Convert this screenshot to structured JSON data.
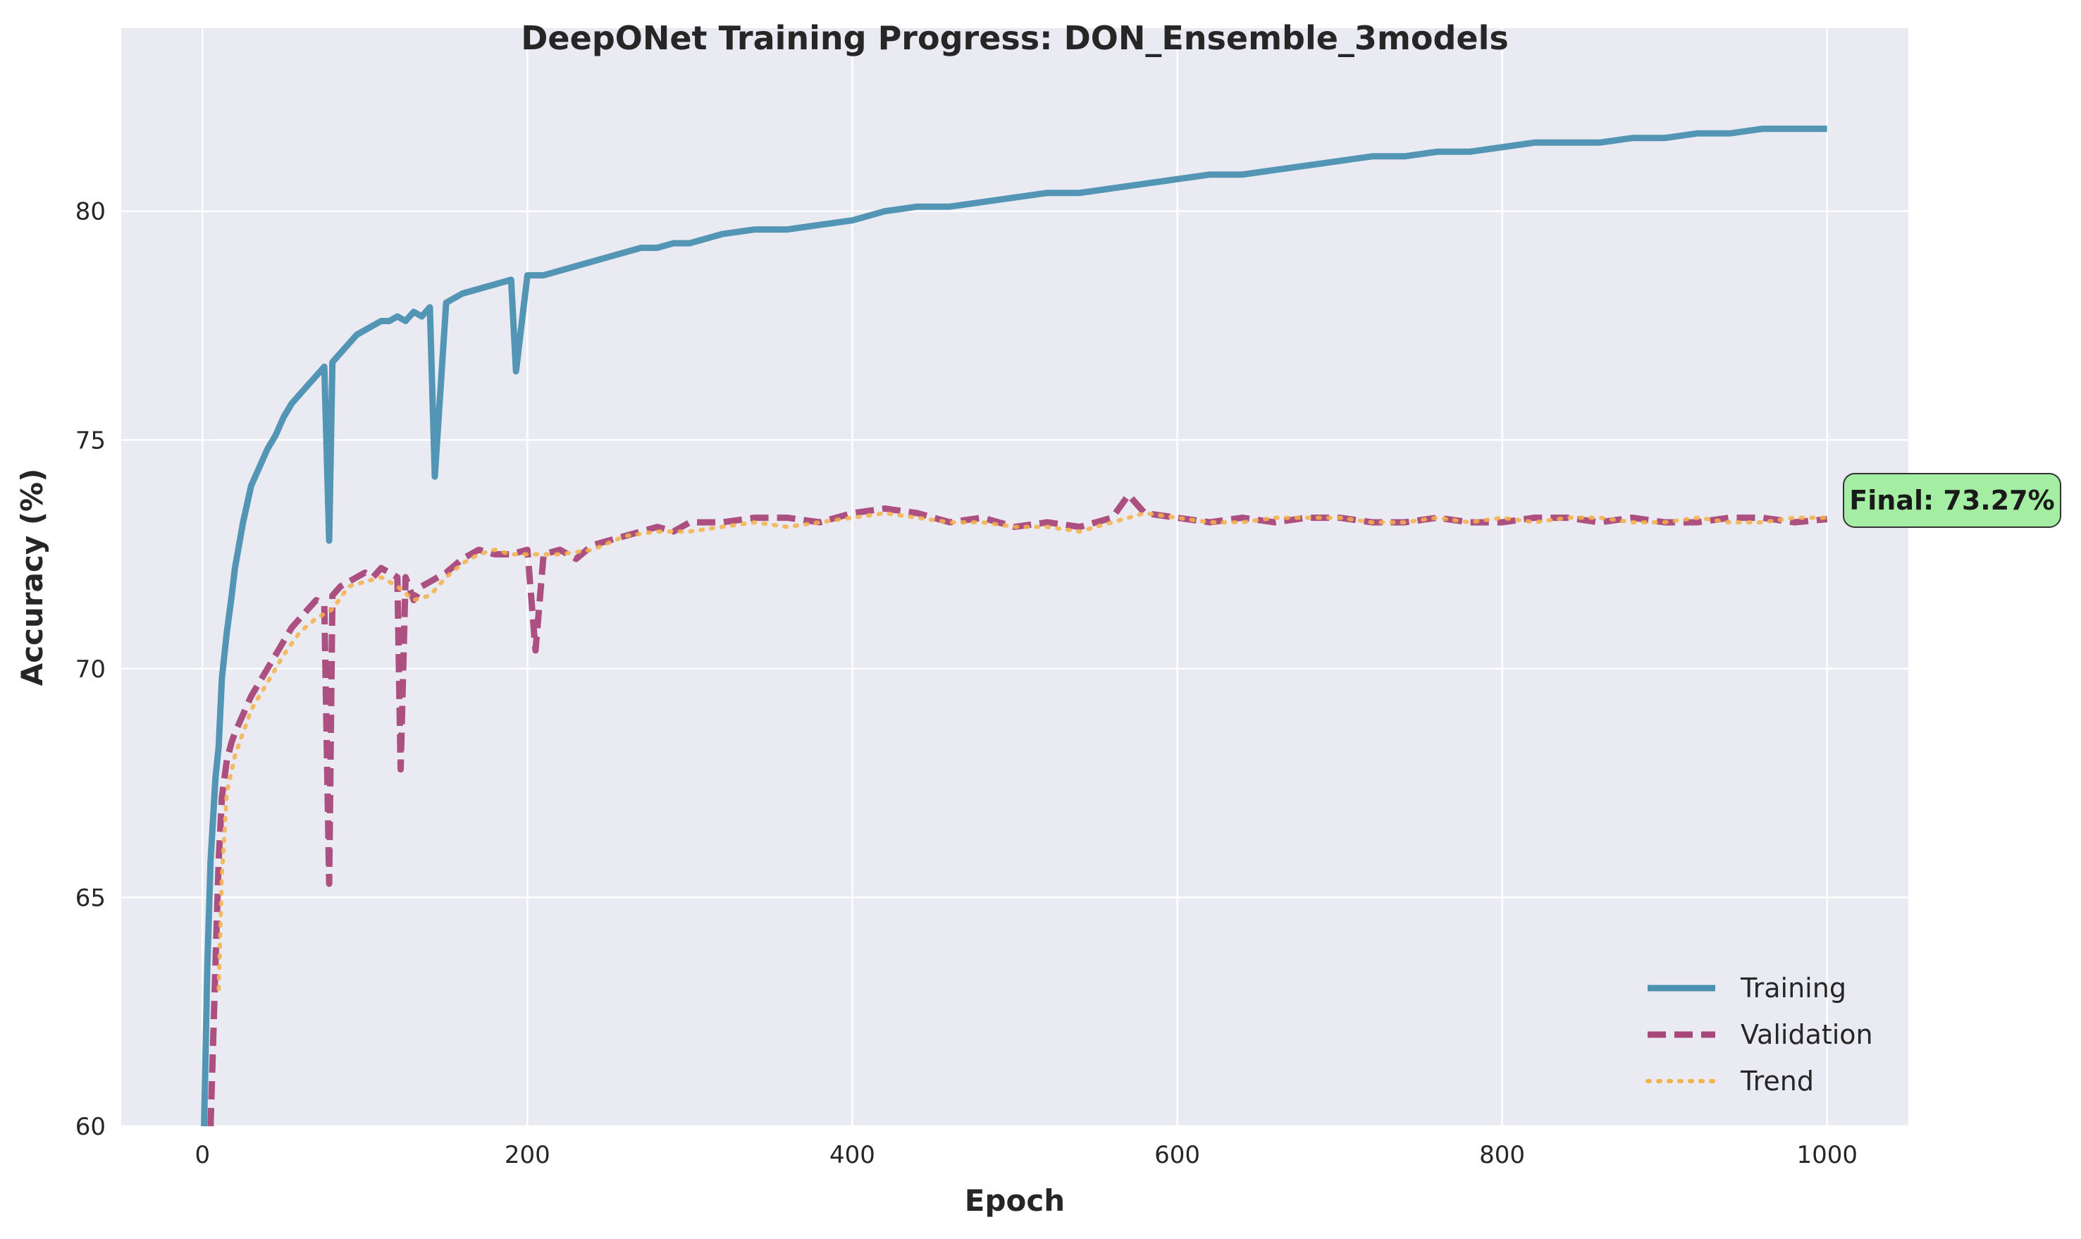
{
  "chart_data": {
    "type": "line",
    "title": "DeepONet Training Progress: DON_Ensemble_3models",
    "xlabel": "Epoch",
    "ylabel": "Accuracy (%)",
    "xlim": [
      -50,
      1050
    ],
    "ylim": [
      60,
      84
    ],
    "xticks": [
      0,
      200,
      400,
      600,
      800,
      1000
    ],
    "yticks": [
      60,
      65,
      70,
      75,
      80
    ],
    "grid": true,
    "legend_position": "bottom-right",
    "series": [
      {
        "name": "Training",
        "color": "#4a90b0",
        "style": "solid",
        "x": [
          1,
          3,
          5,
          8,
          10,
          12,
          15,
          18,
          20,
          25,
          30,
          35,
          40,
          45,
          50,
          55,
          60,
          65,
          70,
          75,
          78,
          80,
          85,
          90,
          95,
          100,
          105,
          110,
          115,
          120,
          125,
          130,
          135,
          140,
          143,
          150,
          160,
          170,
          180,
          190,
          193,
          200,
          210,
          220,
          230,
          240,
          250,
          260,
          270,
          280,
          290,
          300,
          320,
          340,
          360,
          380,
          400,
          420,
          440,
          460,
          480,
          500,
          520,
          540,
          560,
          580,
          600,
          620,
          640,
          660,
          680,
          700,
          720,
          740,
          760,
          780,
          800,
          820,
          840,
          860,
          880,
          900,
          920,
          940,
          960,
          980,
          1000
        ],
        "values": [
          60.0,
          63.5,
          65.8,
          67.6,
          68.3,
          69.8,
          70.8,
          71.6,
          72.2,
          73.2,
          74.0,
          74.4,
          74.8,
          75.1,
          75.5,
          75.8,
          76.0,
          76.2,
          76.4,
          76.6,
          72.8,
          76.7,
          76.9,
          77.1,
          77.3,
          77.4,
          77.5,
          77.6,
          77.6,
          77.7,
          77.6,
          77.8,
          77.7,
          77.9,
          74.2,
          78.0,
          78.2,
          78.3,
          78.4,
          78.5,
          76.5,
          78.6,
          78.6,
          78.7,
          78.8,
          78.9,
          79.0,
          79.1,
          79.2,
          79.2,
          79.3,
          79.3,
          79.5,
          79.6,
          79.6,
          79.7,
          79.8,
          80.0,
          80.1,
          80.1,
          80.2,
          80.3,
          80.4,
          80.4,
          80.5,
          80.6,
          80.7,
          80.8,
          80.8,
          80.9,
          81.0,
          81.1,
          81.2,
          81.2,
          81.3,
          81.3,
          81.4,
          81.5,
          81.5,
          81.5,
          81.6,
          81.6,
          81.7,
          81.7,
          81.8,
          81.8,
          81.8
        ]
      },
      {
        "name": "Validation",
        "color": "#a8487a",
        "style": "dashed",
        "x": [
          5,
          8,
          10,
          12,
          15,
          18,
          20,
          25,
          30,
          35,
          40,
          45,
          50,
          55,
          60,
          65,
          70,
          75,
          78,
          80,
          85,
          90,
          95,
          100,
          105,
          110,
          115,
          120,
          122,
          125,
          130,
          135,
          140,
          150,
          160,
          170,
          180,
          190,
          200,
          205,
          210,
          220,
          230,
          240,
          250,
          260,
          270,
          280,
          290,
          300,
          320,
          340,
          360,
          380,
          400,
          420,
          440,
          460,
          480,
          500,
          520,
          540,
          560,
          570,
          580,
          600,
          620,
          640,
          660,
          680,
          700,
          720,
          740,
          760,
          780,
          800,
          820,
          840,
          860,
          880,
          900,
          920,
          940,
          960,
          980,
          1000
        ],
        "values": [
          60.0,
          63.5,
          65.8,
          67.2,
          68.0,
          68.4,
          68.6,
          69.0,
          69.4,
          69.7,
          70.0,
          70.3,
          70.6,
          70.9,
          71.1,
          71.3,
          71.5,
          71.4,
          65.3,
          71.6,
          71.8,
          71.9,
          72.0,
          72.1,
          72.0,
          72.2,
          72.1,
          72.0,
          67.8,
          72.0,
          71.5,
          71.8,
          71.9,
          72.1,
          72.4,
          72.6,
          72.5,
          72.5,
          72.6,
          70.4,
          72.5,
          72.6,
          72.4,
          72.7,
          72.8,
          72.9,
          73.0,
          73.1,
          73.0,
          73.2,
          73.2,
          73.3,
          73.3,
          73.2,
          73.4,
          73.5,
          73.4,
          73.2,
          73.3,
          73.1,
          73.2,
          73.1,
          73.3,
          73.8,
          73.4,
          73.3,
          73.2,
          73.3,
          73.2,
          73.3,
          73.3,
          73.2,
          73.2,
          73.3,
          73.2,
          73.2,
          73.3,
          73.3,
          73.2,
          73.3,
          73.2,
          73.2,
          73.3,
          73.3,
          73.2,
          73.27
        ]
      },
      {
        "name": "Trend",
        "color": "#f5b24a",
        "style": "dotted",
        "x": [
          10,
          12,
          15,
          20,
          25,
          30,
          40,
          50,
          60,
          70,
          80,
          90,
          100,
          110,
          120,
          130,
          140,
          150,
          160,
          170,
          180,
          190,
          200,
          220,
          240,
          260,
          280,
          300,
          320,
          340,
          360,
          380,
          400,
          420,
          440,
          460,
          480,
          500,
          520,
          540,
          560,
          580,
          600,
          620,
          640,
          660,
          680,
          700,
          720,
          740,
          760,
          780,
          800,
          820,
          840,
          860,
          880,
          900,
          920,
          940,
          960,
          980,
          1000
        ],
        "values": [
          63.0,
          65.5,
          67.3,
          68.1,
          68.6,
          69.1,
          69.7,
          70.3,
          70.8,
          71.1,
          71.3,
          71.8,
          71.9,
          72.0,
          71.8,
          71.5,
          71.6,
          72.0,
          72.3,
          72.5,
          72.6,
          72.5,
          72.5,
          72.5,
          72.6,
          72.9,
          73.0,
          73.0,
          73.1,
          73.2,
          73.1,
          73.2,
          73.3,
          73.4,
          73.3,
          73.2,
          73.2,
          73.1,
          73.1,
          73.0,
          73.2,
          73.4,
          73.3,
          73.2,
          73.2,
          73.3,
          73.3,
          73.3,
          73.2,
          73.2,
          73.3,
          73.2,
          73.3,
          73.2,
          73.3,
          73.3,
          73.2,
          73.2,
          73.3,
          73.2,
          73.2,
          73.3,
          73.3
        ]
      }
    ],
    "annotation": {
      "text": "Final: 73.27%",
      "x": 1000,
      "y": 73.27,
      "background": "#a3eea3"
    }
  },
  "style": {
    "plot_background": "#eaeaf2",
    "grid_color": "#ffffff"
  }
}
